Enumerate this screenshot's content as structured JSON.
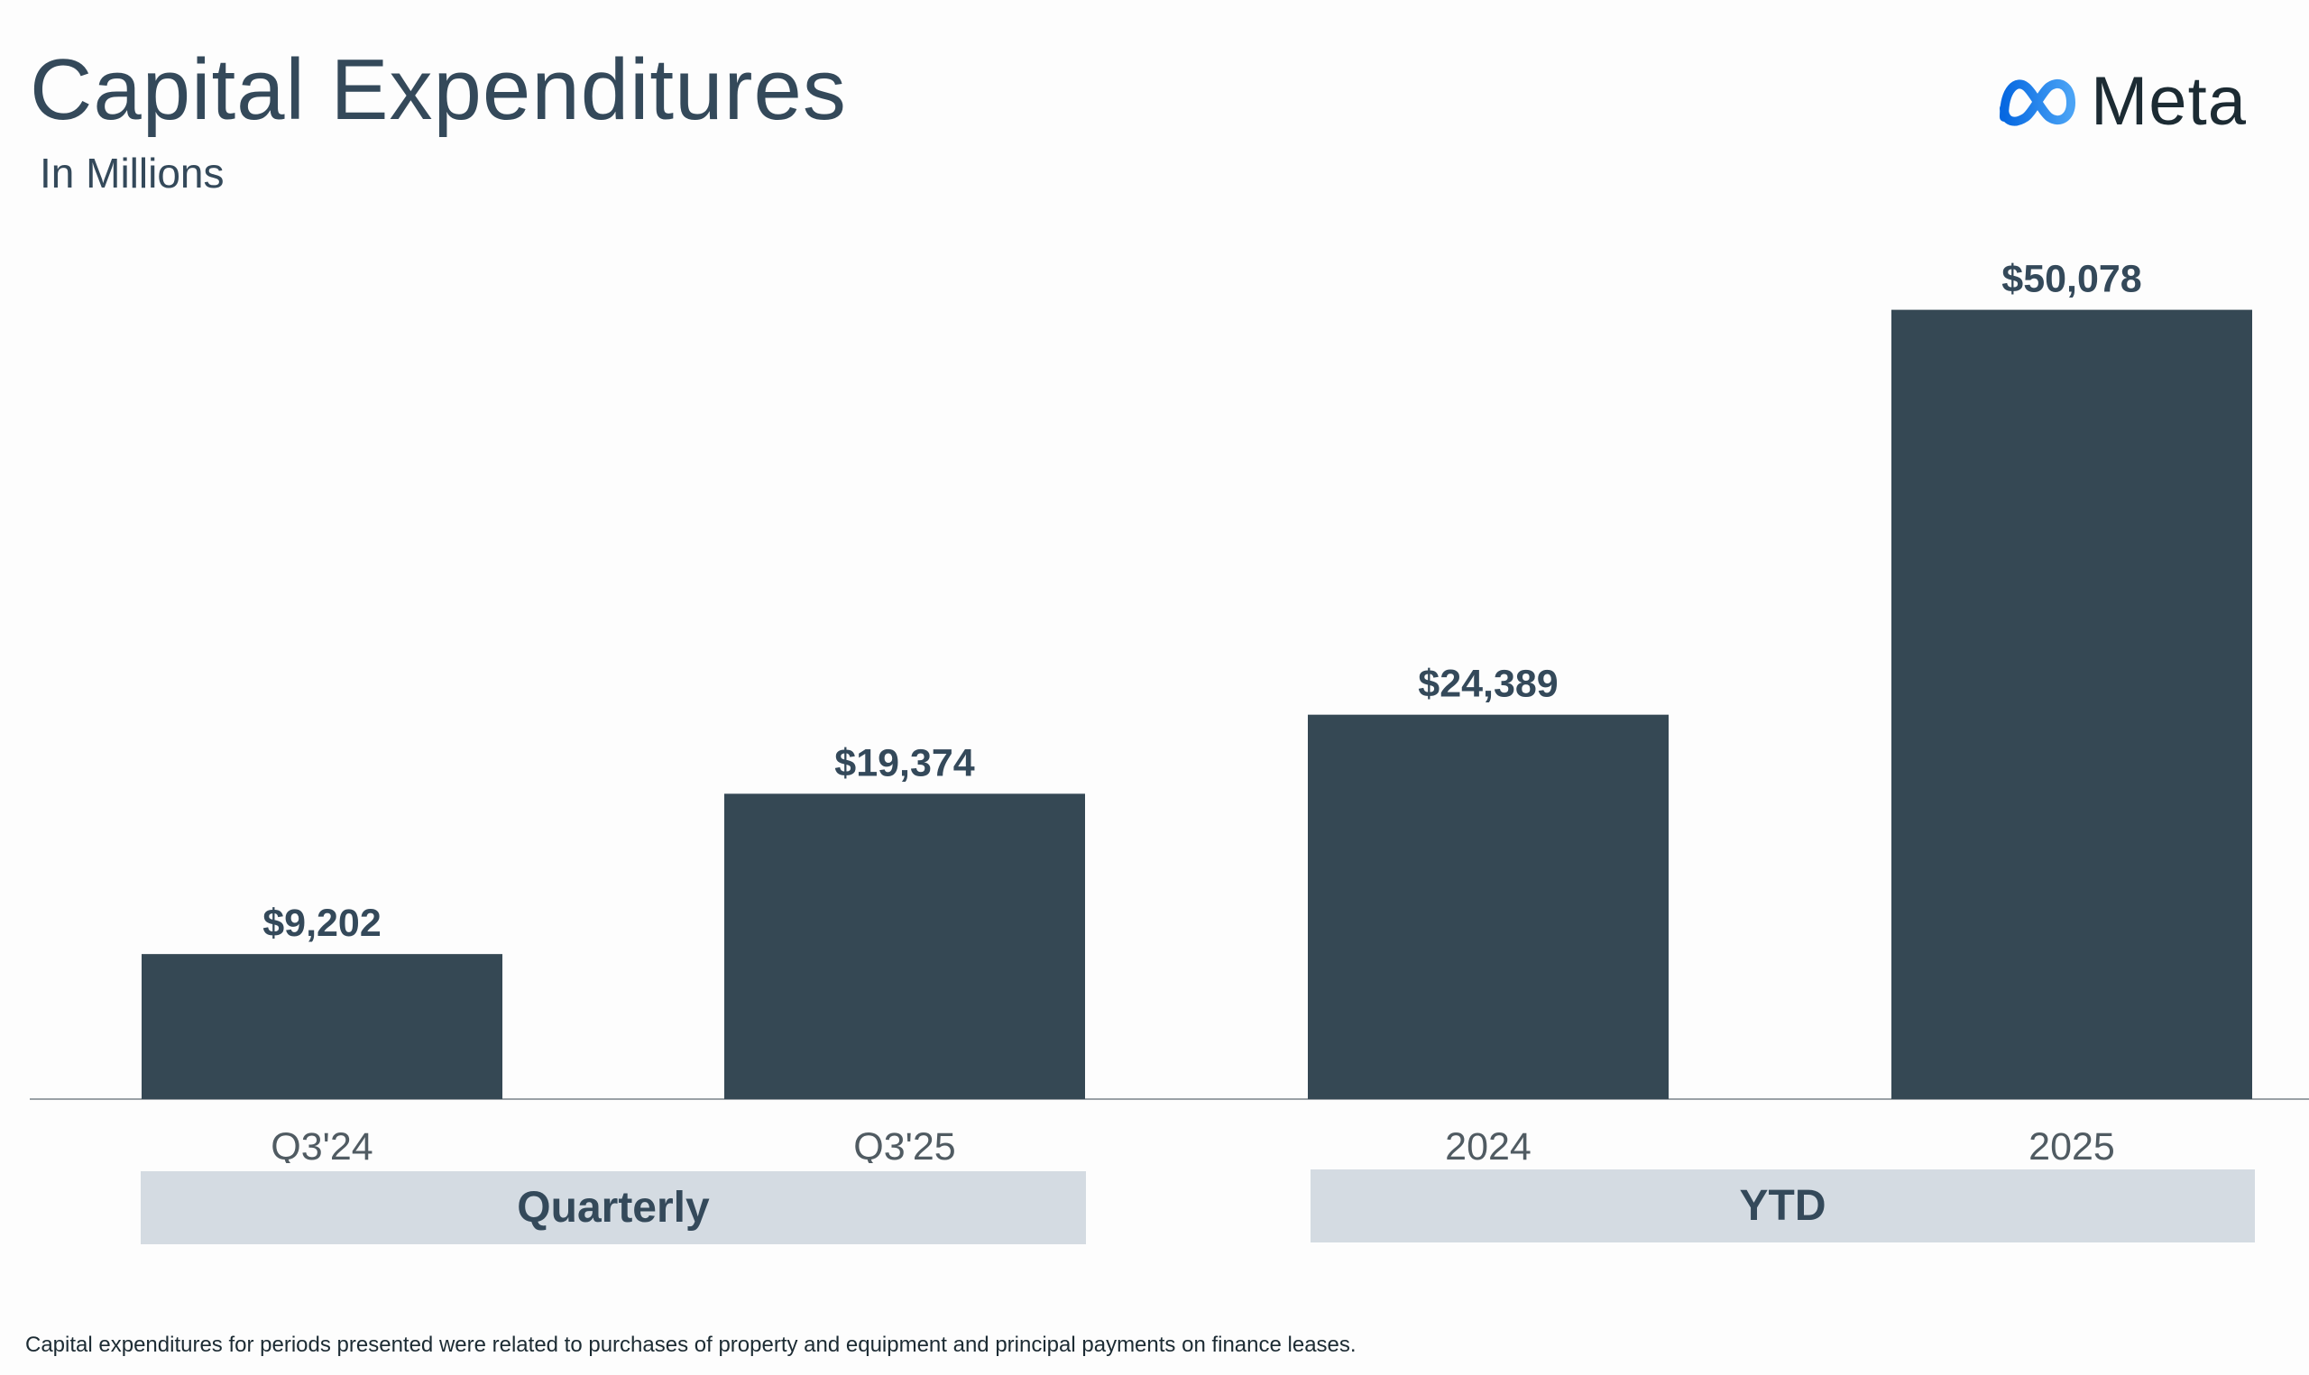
{
  "header": {
    "title": "Capital Expenditures",
    "subtitle": "In Millions"
  },
  "logo": {
    "wordmark": "Meta"
  },
  "groups": {
    "quarterly": "Quarterly",
    "ytd": "YTD"
  },
  "footnote": "Capital expenditures for periods presented were related to purchases of property and equipment and principal payments on finance leases.",
  "colors": {
    "bar": "#354854",
    "text": "#34495a",
    "group_box": "#d4dbe2",
    "logo_gradient_start": "#0668e1",
    "logo_gradient_end": "#4aa3f5"
  },
  "chart_data": {
    "type": "bar",
    "title": "Capital Expenditures",
    "subtitle": "In Millions",
    "categories": [
      "Q3'24",
      "Q3'25",
      "2024",
      "2025"
    ],
    "values": [
      9202,
      19374,
      24389,
      50078
    ],
    "value_labels": [
      "$9,202",
      "$19,374",
      "$24,389",
      "$50,078"
    ],
    "ylim": [
      0,
      52000
    ],
    "xlabel": "",
    "ylabel": "",
    "grid": false
  }
}
